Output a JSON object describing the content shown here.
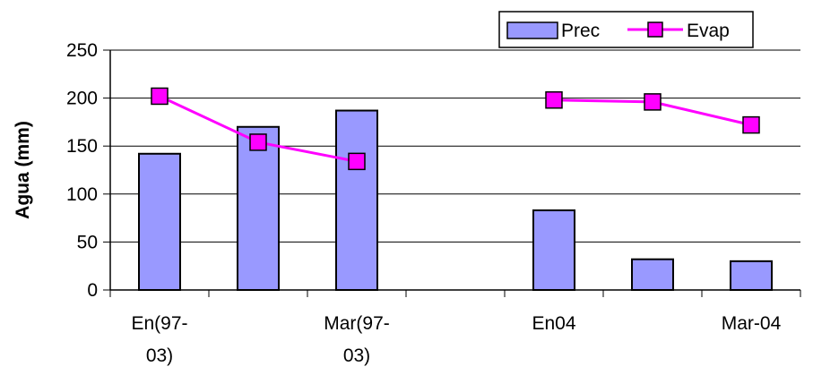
{
  "chart_data": {
    "type": "bar",
    "categories": [
      "En(97-03)",
      "",
      "Mar(97-03)",
      "",
      "En04",
      "",
      "Mar-04"
    ],
    "category_labels": [
      [
        "En(97-",
        "03)"
      ],
      [],
      [
        "Mar(97-",
        "03)"
      ],
      [],
      [
        "En04"
      ],
      [],
      [
        "Mar-04"
      ]
    ],
    "series": [
      {
        "name": "Prec",
        "kind": "bar",
        "color": "#9999ff",
        "values": [
          142,
          170,
          187,
          null,
          83,
          32,
          30
        ]
      },
      {
        "name": "Evap",
        "kind": "line",
        "color": "#ff00ff",
        "values": [
          202,
          154,
          134,
          null,
          198,
          196,
          172
        ]
      }
    ],
    "title": "",
    "xlabel": "",
    "ylabel": "Agua (mm)",
    "ylim": [
      0,
      250
    ],
    "yticks": [
      0,
      50,
      100,
      150,
      200,
      250
    ],
    "grid": "horizontal",
    "legend_position": "top-right"
  }
}
